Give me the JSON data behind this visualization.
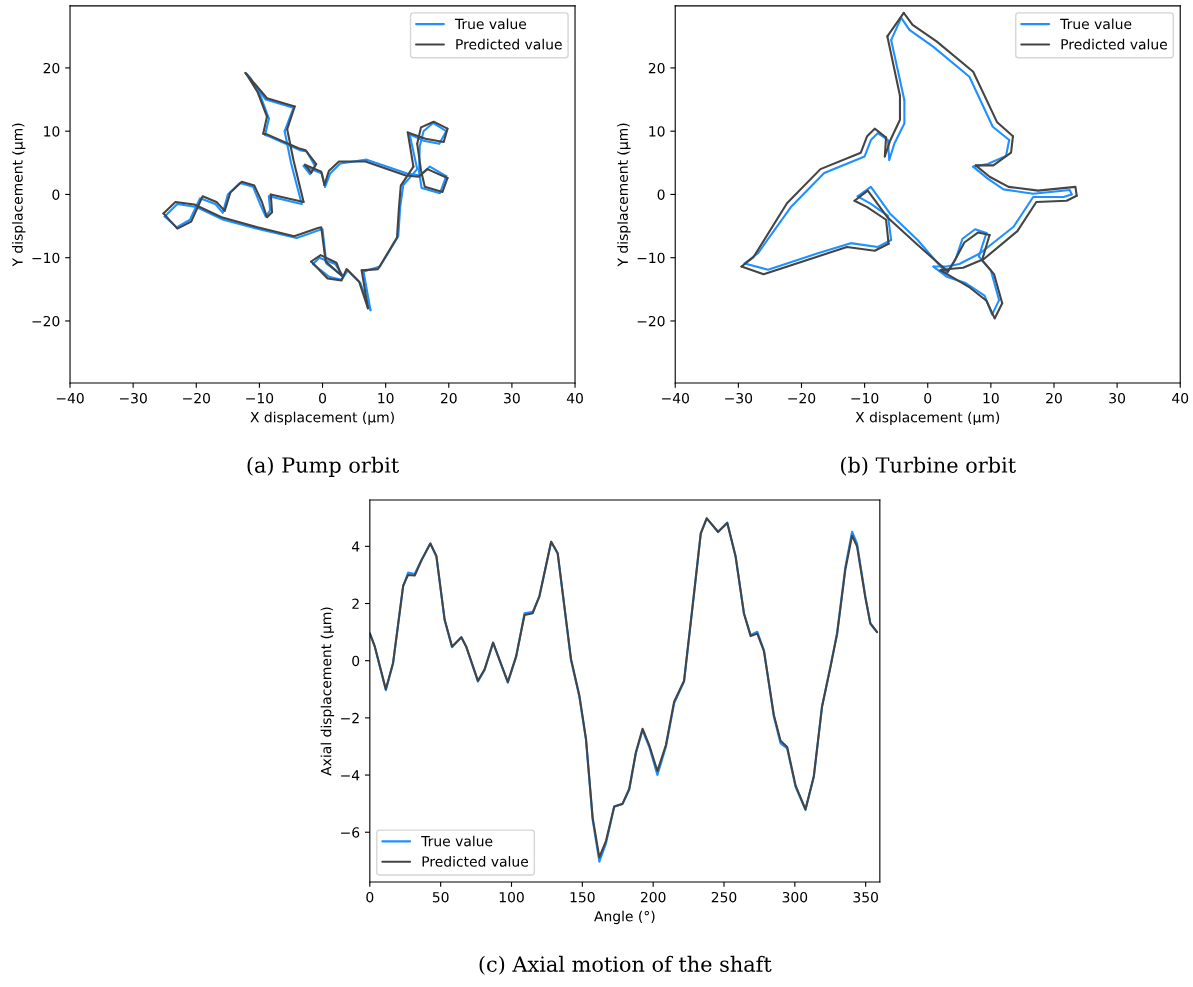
{
  "chart_data": [
    {
      "type": "line",
      "xlabel": "X displacement (μm)",
      "ylabel": "Y displacement (μm)",
      "xlim": [
        -40,
        40
      ],
      "ylim": [
        -29.8,
        29.8
      ],
      "xticks": [
        -40,
        -30,
        -20,
        -10,
        0,
        10,
        20,
        30,
        40
      ],
      "yticks": [
        -20,
        -10,
        0,
        10,
        20
      ],
      "legend": "top right",
      "annotations": [
        "(a) Pump orbit"
      ],
      "series": [
        {
          "name": "True value",
          "color": "#1e90ff",
          "x": [
            0.4,
            1.2,
            2.8,
            7.0,
            13.4,
            15.5,
            17.0,
            19.6,
            18.6,
            15.7,
            15.3,
            15.4,
            16.0,
            17.5,
            19.6,
            18.5,
            16.0,
            13.8,
            15.0,
            12.8,
            12.3,
            12.0,
            9.1,
            6.5,
            7.6,
            6.0,
            4.0,
            3.0,
            1.0,
            -1.5,
            -0.5,
            2.0,
            3.3,
            0.6,
            0.0,
            -0.4,
            -4.1,
            -10.0,
            -15.7,
            -20.0,
            -23.0,
            -25.0,
            -23.1,
            -21.0,
            -19.4,
            -17.0,
            -15.8,
            -15.0,
            -13.1,
            -11.0,
            -9.9,
            -9.0,
            -8.3,
            -8.5,
            -3.3,
            -5.0,
            -6.0,
            -4.6,
            -9.0,
            -12.0,
            -11.5,
            -10.0,
            -8.5,
            -9.1,
            -8.5,
            -3.6,
            -2.5,
            -1.2,
            -2.0,
            -3.0,
            -0.1,
            0.4
          ],
          "values": [
            1.2,
            3.3,
            4.9,
            5.5,
            3.3,
            3.0,
            4.4,
            2.9,
            0.2,
            1.0,
            3.5,
            7.6,
            10.0,
            11.3,
            10.0,
            8.0,
            8.5,
            9.5,
            4.0,
            1.5,
            -2.0,
            -6.6,
            -11.4,
            -12.2,
            -18.3,
            -14.0,
            -12.0,
            -13.5,
            -13.0,
            -11.0,
            -10.0,
            -11.0,
            -13.0,
            -10.9,
            -5.5,
            -5.6,
            -6.9,
            -5.5,
            -4.0,
            -2.0,
            -1.5,
            -3.5,
            -5.2,
            -4.0,
            -0.6,
            -1.5,
            -2.9,
            0.0,
            1.8,
            1.2,
            -1.5,
            -3.5,
            -2.5,
            -0.3,
            -1.5,
            5.0,
            10.0,
            13.7,
            15.0,
            19.0,
            18.5,
            16.0,
            12.0,
            9.4,
            9.2,
            7.0,
            6.8,
            4.5,
            3.2,
            4.5,
            3.3,
            1.2
          ]
        },
        {
          "name": "Predicted value",
          "color": "#444444",
          "x": [
            0.3,
            1.0,
            2.6,
            6.8,
            13.2,
            15.2,
            16.6,
            19.8,
            19.0,
            16.2,
            15.6,
            15.0,
            15.6,
            17.6,
            19.8,
            19.2,
            16.3,
            13.5,
            14.4,
            12.4,
            12.1,
            11.8,
            8.8,
            6.2,
            7.2,
            5.8,
            3.8,
            3.0,
            0.8,
            -1.8,
            -0.3,
            2.2,
            3.0,
            0.5,
            -0.2,
            -0.7,
            -4.5,
            -10.3,
            -16.0,
            -20.3,
            -23.3,
            -25.2,
            -23.0,
            -20.8,
            -19.0,
            -16.8,
            -15.5,
            -14.6,
            -12.8,
            -10.8,
            -9.6,
            -8.8,
            -8.0,
            -8.2,
            -3.0,
            -4.6,
            -5.6,
            -4.4,
            -8.8,
            -12.2,
            -11.8,
            -10.3,
            -8.8,
            -9.4,
            -8.8,
            -3.8,
            -2.7,
            -1.0,
            -1.8,
            -2.8,
            -0.2,
            0.3
          ],
          "values": [
            1.5,
            3.7,
            5.2,
            5.2,
            3.0,
            2.8,
            4.0,
            2.6,
            0.4,
            1.2,
            3.8,
            8.0,
            10.6,
            11.5,
            10.4,
            8.3,
            8.8,
            9.8,
            4.4,
            1.4,
            -2.2,
            -6.8,
            -11.8,
            -12.0,
            -18.0,
            -13.8,
            -11.8,
            -13.6,
            -13.3,
            -10.6,
            -9.6,
            -10.8,
            -12.8,
            -10.6,
            -5.2,
            -5.3,
            -6.6,
            -5.2,
            -3.6,
            -1.6,
            -1.2,
            -3.0,
            -5.4,
            -4.3,
            -0.3,
            -1.2,
            -2.6,
            0.3,
            2.0,
            1.4,
            -1.2,
            -3.6,
            -2.8,
            0.0,
            -1.2,
            5.4,
            10.3,
            13.9,
            15.2,
            19.2,
            18.6,
            16.2,
            12.3,
            9.6,
            9.5,
            7.3,
            7.0,
            4.8,
            3.4,
            4.7,
            3.6,
            1.5
          ]
        }
      ]
    },
    {
      "type": "line",
      "xlabel": "X displacement (μm)",
      "ylabel": "Y displacement (μm)",
      "xlim": [
        -40,
        40
      ],
      "ylim": [
        -29.8,
        29.8
      ],
      "xticks": [
        -40,
        -30,
        -20,
        -10,
        0,
        10,
        20,
        30,
        40
      ],
      "yticks": [
        -20,
        -10,
        0,
        10,
        20
      ],
      "legend": "top right",
      "annotations": [
        "(b) Turbine orbit"
      ],
      "series": [
        {
          "name": "True value",
          "color": "#1e90ff",
          "x": [
            -4.2,
            -2.9,
            0.8,
            6.6,
            10.3,
            12.9,
            12.4,
            9.5,
            7.2,
            9.5,
            12.0,
            16.7,
            22.5,
            22.8,
            21.5,
            16.7,
            13.6,
            8.3,
            5.0,
            3.0,
            0.9,
            3.0,
            6.0,
            9.0,
            10.2,
            11.3,
            10.0,
            8.1,
            9.3,
            7.5,
            5.5,
            4.5,
            3.0,
            -1.6,
            -6.0,
            -9.0,
            -11.1,
            -9.0,
            -6.3,
            -5.8,
            -7.9,
            -12.2,
            -17.4,
            -25.3,
            -29.0,
            -26.9,
            -21.6,
            -16.4,
            -10.0,
            -9.0,
            -7.9,
            -6.3,
            -6.1,
            -5.3,
            -3.7,
            -3.7,
            -5.8,
            -4.2
          ],
          "values": [
            27.9,
            26.0,
            23.4,
            18.6,
            10.7,
            8.6,
            6.1,
            4.8,
            4.4,
            2.5,
            0.8,
            0.1,
            0.7,
            0.0,
            -0.4,
            -0.4,
            -5.1,
            -9.3,
            -11.0,
            -11.4,
            -11.4,
            -13.0,
            -14.0,
            -16.0,
            -19.0,
            -16.7,
            -12.0,
            -9.8,
            -6.1,
            -5.5,
            -7.0,
            -10.0,
            -12.5,
            -7.2,
            -3.0,
            1.2,
            -0.3,
            -1.5,
            -3.4,
            -7.2,
            -8.3,
            -7.7,
            -9.3,
            -11.9,
            -10.9,
            -9.3,
            -1.9,
            3.4,
            6.0,
            8.6,
            9.7,
            8.6,
            5.4,
            8.0,
            11.2,
            14.9,
            24.4,
            27.9
          ]
        },
        {
          "name": "Predicted value",
          "color": "#444444",
          "x": [
            -3.8,
            -2.4,
            1.4,
            7.2,
            11.0,
            13.5,
            13.2,
            10.4,
            7.6,
            9.8,
            12.8,
            17.5,
            23.4,
            23.6,
            22.0,
            17.2,
            14.2,
            8.9,
            5.6,
            3.4,
            2.0,
            3.4,
            6.5,
            9.3,
            10.6,
            11.8,
            10.5,
            8.6,
            9.8,
            8.0,
            5.8,
            4.2,
            3.2,
            -1.8,
            -6.4,
            -9.5,
            -11.6,
            -9.6,
            -6.6,
            -6.2,
            -8.4,
            -12.8,
            -18.0,
            -26.0,
            -29.5,
            -27.6,
            -22.3,
            -17.0,
            -10.6,
            -9.6,
            -8.4,
            -6.6,
            -6.8,
            -6.0,
            -4.4,
            -4.4,
            -6.4,
            -3.8
          ],
          "values": [
            28.7,
            26.8,
            24.2,
            19.4,
            11.4,
            9.2,
            6.6,
            4.6,
            4.6,
            2.8,
            1.2,
            0.6,
            1.2,
            -0.2,
            -1.0,
            -1.2,
            -5.8,
            -10.2,
            -11.6,
            -11.8,
            -12.0,
            -12.8,
            -14.6,
            -16.8,
            -19.6,
            -17.2,
            -12.6,
            -10.4,
            -6.4,
            -6.0,
            -7.6,
            -10.6,
            -12.2,
            -7.8,
            -3.6,
            0.6,
            -1.0,
            -2.0,
            -4.0,
            -7.8,
            -8.9,
            -8.3,
            -10.0,
            -12.6,
            -11.4,
            -9.9,
            -1.4,
            4.0,
            6.6,
            9.2,
            10.4,
            9.0,
            6.0,
            8.4,
            11.8,
            15.6,
            25.0,
            28.7
          ]
        }
      ]
    },
    {
      "type": "line",
      "xlabel": "Angle (°)",
      "ylabel": "Axial displacement (μm)",
      "xlim": [
        0,
        360
      ],
      "ylim": [
        -7.74,
        5.62
      ],
      "xticks": [
        0,
        50,
        100,
        150,
        200,
        250,
        300,
        350
      ],
      "yticks": [
        -6,
        -4,
        -2,
        0,
        2,
        4
      ],
      "legend": "bottom left",
      "annotations": [
        "(c) Axial motion of the shaft"
      ],
      "series": [
        {
          "name": "True value",
          "color": "#1e90ff",
          "x": [
            0,
            3.5,
            11.3,
            16.4,
            23.5,
            27,
            31.7,
            36.4,
            42.7,
            47,
            52.8,
            58,
            64.6,
            68,
            76.3,
            81,
            87,
            91.5,
            97.4,
            103.3,
            109.2,
            115,
            119.7,
            128,
            132.6,
            142,
            147.9,
            152.6,
            157.3,
            162,
            166.7,
            172.5,
            178.4,
            183.1,
            187.8,
            192.5,
            197.2,
            203,
            209,
            214.8,
            221.8,
            228.9,
            233.6,
            237.8,
            241.8,
            245.8,
            252.3,
            258.2,
            264.1,
            268.8,
            273.5,
            278.2,
            285.2,
            289.9,
            294.6,
            300.5,
            307.5,
            313.4,
            319.2,
            325.1,
            329.8,
            335.7,
            340.4,
            343.9,
            349.8,
            353.3,
            358
          ],
          "values": [
            0.96,
            0.49,
            -1.03,
            -0.09,
            2.59,
            3.08,
            3.03,
            3.52,
            4.1,
            3.64,
            1.42,
            0.47,
            0.82,
            0.49,
            -0.73,
            -0.33,
            0.63,
            0.02,
            -0.77,
            0.14,
            1.66,
            1.71,
            2.24,
            4.16,
            3.75,
            0.02,
            -1.26,
            -2.78,
            -5.57,
            -7.03,
            -6.39,
            -5.11,
            -5.01,
            -4.52,
            -3.24,
            -2.43,
            -3.01,
            -4.0,
            -3.01,
            -1.49,
            -0.73,
            2.36,
            4.45,
            4.98,
            4.75,
            4.51,
            4.83,
            3.64,
            1.66,
            0.9,
            1.01,
            0.37,
            -1.96,
            -2.89,
            -3.07,
            -4.41,
            -5.22,
            -4.06,
            -1.61,
            -0.21,
            0.96,
            3.29,
            4.51,
            4.1,
            2.24,
            1.31,
            1.01
          ]
        },
        {
          "name": "Predicted value",
          "color": "#444444",
          "x": [
            0,
            3.5,
            11.3,
            16.4,
            23.5,
            27,
            31.7,
            36.4,
            42.7,
            47,
            52.8,
            58,
            64.6,
            68,
            76.3,
            81,
            87,
            91.5,
            97.4,
            103.3,
            109.2,
            115,
            119.7,
            128,
            132.6,
            142,
            147.9,
            152.6,
            157.3,
            162,
            166.7,
            172.5,
            178.4,
            183.1,
            187.8,
            192.5,
            197.2,
            203,
            209,
            214.8,
            221.8,
            228.9,
            233.6,
            237.8,
            241.8,
            245.8,
            252.3,
            258.2,
            264.1,
            268.8,
            273.5,
            278.2,
            285.2,
            289.9,
            294.6,
            300.5,
            307.5,
            313.4,
            319.2,
            325.1,
            329.8,
            335.7,
            340.4,
            343.9,
            349.8,
            353.3,
            358
          ],
          "values": [
            0.96,
            0.5,
            -1.0,
            -0.08,
            2.62,
            3.0,
            2.98,
            3.5,
            4.1,
            3.66,
            1.44,
            0.5,
            0.82,
            0.5,
            -0.7,
            -0.3,
            0.63,
            0.04,
            -0.74,
            0.16,
            1.6,
            1.66,
            2.26,
            4.16,
            3.76,
            0.06,
            -1.22,
            -2.74,
            -5.5,
            -6.88,
            -6.3,
            -5.1,
            -5.0,
            -4.48,
            -3.2,
            -2.38,
            -2.95,
            -3.86,
            -2.95,
            -1.43,
            -0.7,
            2.38,
            4.45,
            4.98,
            4.74,
            4.5,
            4.82,
            3.64,
            1.64,
            0.86,
            0.95,
            0.33,
            -1.9,
            -2.8,
            -3.02,
            -4.36,
            -5.2,
            -4.04,
            -1.6,
            -0.23,
            0.92,
            3.2,
            4.38,
            4.0,
            2.2,
            1.3,
            1.0
          ]
        }
      ]
    }
  ]
}
